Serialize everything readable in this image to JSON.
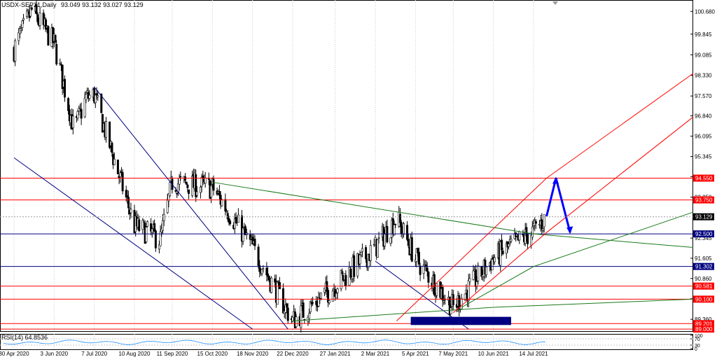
{
  "header": {
    "symbol": "USDX-SEP21,Daily",
    "ohlc": "93.049 93.132 93.027 93.129"
  },
  "rsi": {
    "label": "RSI(14) 64.8536",
    "ticks": [
      "100",
      "70",
      "30",
      "0"
    ]
  },
  "colors": {
    "bull": "#ffffff",
    "bear": "#000000",
    "grid": "#c8c8c8",
    "red": "#ff0000",
    "navy": "#000080",
    "green": "#1a7a1a",
    "blue": "#0000ff",
    "current": "#000000",
    "rsi_line": "#1e90ff"
  },
  "chart_data": {
    "type": "candlestick",
    "title": "USDX-SEP21,Daily",
    "x_labels": [
      "30 Apr 2020",
      "3 Jun 2020",
      "7 Jul 2020",
      "10 Aug 2020",
      "11 Sep 2020",
      "15 Oct 2020",
      "18 Nov 2020",
      "22 Dec 2020",
      "27 Jan 2021",
      "2 Mar 2021",
      "5 Apr 2021",
      "7 May 2021",
      "10 Jun 2021",
      "14 Jul 2021"
    ],
    "y_ticks": [
      "100.680",
      "99.845",
      "99.085",
      "98.330",
      "97.570",
      "96.840",
      "96.095",
      "95.345",
      "94.600",
      "93.850",
      "92.345",
      "91.605",
      "90.860",
      "90.115",
      "89.360"
    ],
    "ylim": [
      88.9,
      101.1
    ],
    "horizontal_levels": [
      {
        "value": 94.55,
        "label": "94.550",
        "color": "red"
      },
      {
        "value": 93.75,
        "label": "93.750",
        "color": "red"
      },
      {
        "value": 92.5,
        "label": "92.500",
        "color": "navy"
      },
      {
        "value": 91.302,
        "label": "91.302",
        "color": "navy"
      },
      {
        "value": 90.581,
        "label": "90.581",
        "color": "red"
      },
      {
        "value": 90.1,
        "label": "90.100",
        "color": "red"
      },
      {
        "value": 89.201,
        "label": "89.201",
        "color": "red"
      },
      {
        "value": 89.0,
        "label": "89.000",
        "color": "red"
      }
    ],
    "current_price": {
      "value": 93.129,
      "label": "93.129"
    },
    "key_prices": [
      {
        "date": "30 Apr 2020",
        "price": 99.3
      },
      {
        "date": "15 May 2020",
        "price": 100.7
      },
      {
        "date": "3 Jun 2020",
        "price": 99.5
      },
      {
        "date": "20 Jun 2020",
        "price": 96.3
      },
      {
        "date": "30 Jun 2020",
        "price": 97.5
      },
      {
        "date": "7 Jul 2020",
        "price": 97.6
      },
      {
        "date": "10 Aug 2020",
        "price": 92.8
      },
      {
        "date": "1 Sep 2020",
        "price": 92.3
      },
      {
        "date": "11 Sep 2020",
        "price": 94.4
      },
      {
        "date": "15 Oct 2020",
        "price": 94.2
      },
      {
        "date": "18 Nov 2020",
        "price": 92.0
      },
      {
        "date": "22 Dec 2020",
        "price": 89.3
      },
      {
        "date": "27 Jan 2021",
        "price": 90.6
      },
      {
        "date": "2 Mar 2021",
        "price": 92.0
      },
      {
        "date": "20 Mar 2021",
        "price": 93.1
      },
      {
        "date": "5 Apr 2021",
        "price": 91.6
      },
      {
        "date": "7 May 2021",
        "price": 89.8
      },
      {
        "date": "10 Jun 2021",
        "price": 91.6
      },
      {
        "date": "14 Jul 2021",
        "price": 92.6
      },
      {
        "date": "25 Jul 2021",
        "price": 93.13
      }
    ]
  }
}
